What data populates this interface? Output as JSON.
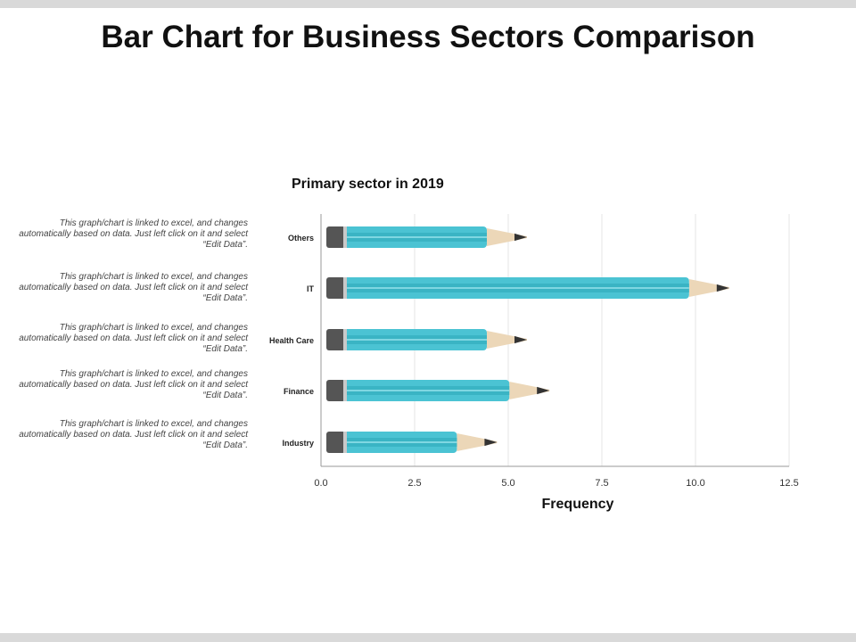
{
  "title": "Bar Chart for Business Sectors Comparison",
  "notes": [
    "This graph/chart is linked to excel, and changes automatically based on data. Just left click on it and select “Edit Data”.",
    "This graph/chart is linked to excel, and changes automatically based on data. Just left click on it and select “Edit Data”.",
    "This graph/chart is linked to excel, and changes automatically based on data. Just left click on it and select “Edit Data”.",
    "This graph/chart is linked to excel, and changes automatically based on data. Just left click on it and select “Edit Data”.",
    "This graph/chart is linked to excel, and changes automatically based on data. Just left click on it and select “Edit Data”."
  ],
  "colors": {
    "pencil_body": "#4bc3d3",
    "pencil_stripe": "#3ab4c4",
    "pencil_eraser": "#555555",
    "pencil_wood": "#ecd7b8",
    "pencil_lead": "#333333",
    "band": "#d9d9d9",
    "grid": "#e6e6e6",
    "axis": "#999999"
  },
  "chart_data": {
    "type": "bar",
    "orientation": "horizontal",
    "title": "Primary sector in 2019",
    "xlabel": "Frequency",
    "ylabel": "",
    "categories": [
      "Others",
      "IT",
      "Health Care",
      "Finance",
      "Industry"
    ],
    "values": [
      5.5,
      10.9,
      5.5,
      6.1,
      4.7
    ],
    "xlim": [
      0,
      12.5
    ],
    "xticks": [
      "0.0",
      "2.5",
      "5.0",
      "7.5",
      "10.0",
      "12.5"
    ],
    "grid": true,
    "legend": "none"
  }
}
